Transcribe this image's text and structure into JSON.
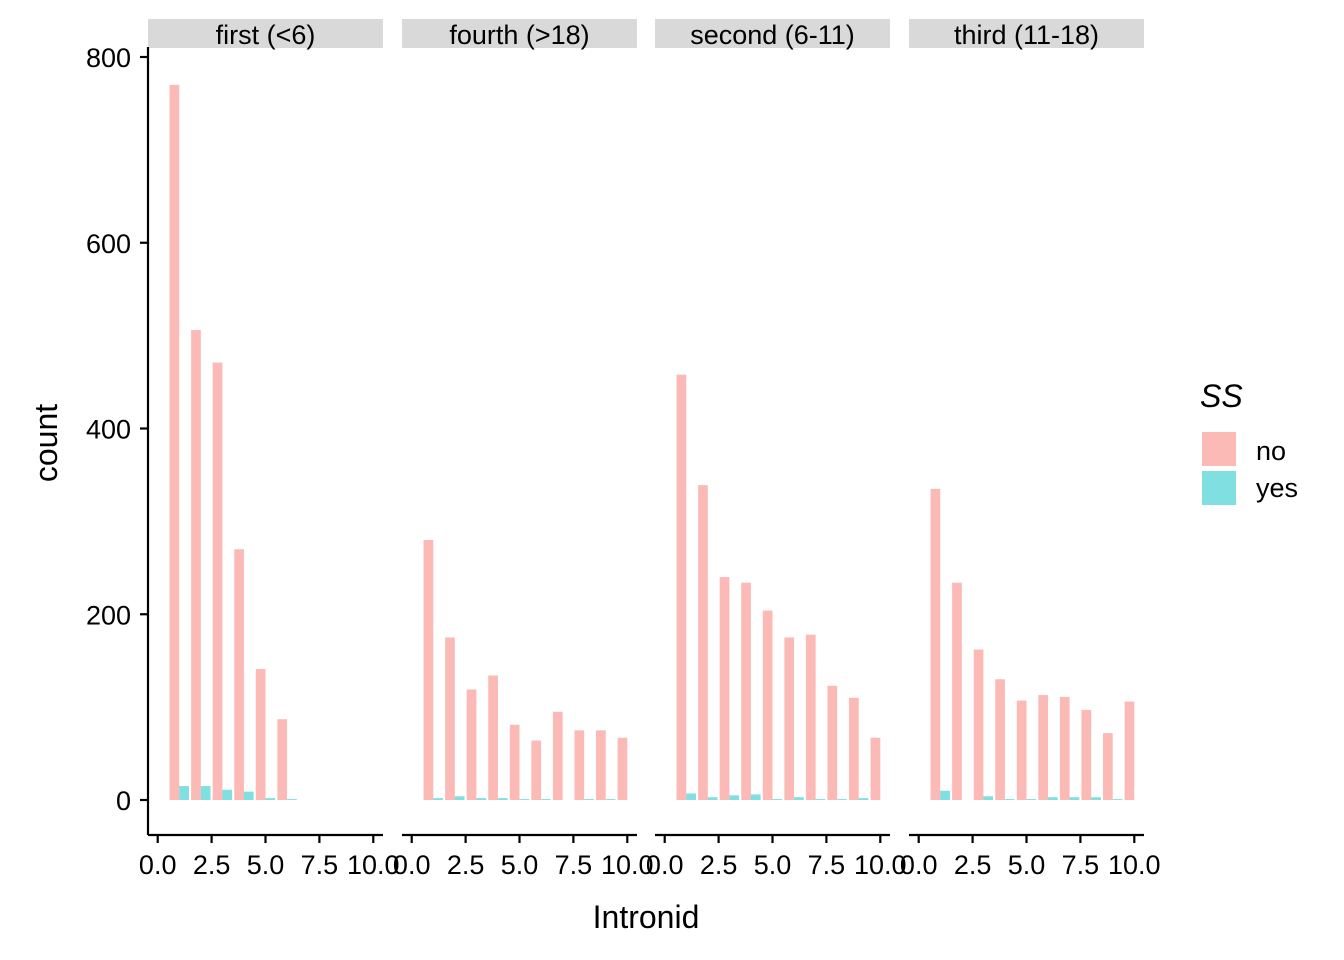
{
  "chart_data": {
    "type": "bar",
    "xlabel": "Intronid",
    "ylabel": "count",
    "ylim": [
      0,
      800
    ],
    "y_ticks": [
      0,
      200,
      400,
      600,
      800
    ],
    "x_ticks": [
      0,
      2.5,
      5,
      7.5,
      10
    ],
    "x_tick_labels": [
      "0.0",
      "2.5",
      "5.0",
      "7.5",
      "10.0"
    ],
    "xlim": [
      -0.45,
      10.45
    ],
    "grid": false,
    "legend": {
      "title": "SS",
      "placement": "right",
      "entries": [
        {
          "label": "no",
          "color": "#F8766D"
        },
        {
          "label": "yes",
          "color": "#00BFC4"
        }
      ]
    },
    "bar_opacity": 0.5,
    "panels": [
      {
        "label": "first (<6)",
        "series": [
          {
            "name": "no",
            "x": [
              1,
              2,
              3,
              4,
              5,
              6
            ],
            "values": [
              770,
              506,
              471,
              270,
              141,
              87
            ]
          },
          {
            "name": "yes",
            "x": [
              1,
              2,
              3,
              4,
              5,
              6
            ],
            "values": [
              15,
              15,
              11,
              9,
              2,
              1
            ]
          }
        ]
      },
      {
        "label": "fourth (>18)",
        "series": [
          {
            "name": "no",
            "x": [
              1,
              2,
              3,
              4,
              5,
              6,
              7,
              8,
              9,
              10
            ],
            "values": [
              280,
              175,
              119,
              134,
              81,
              64,
              95,
              75,
              75,
              67
            ]
          },
          {
            "name": "yes",
            "x": [
              1,
              2,
              3,
              4,
              5,
              6,
              7,
              8,
              9,
              10
            ],
            "values": [
              2,
              4,
              2,
              2,
              1,
              1,
              0,
              1,
              1,
              0
            ]
          }
        ]
      },
      {
        "label": "second (6-11)",
        "series": [
          {
            "name": "no",
            "x": [
              1,
              2,
              3,
              4,
              5,
              6,
              7,
              8,
              9,
              10
            ],
            "values": [
              458,
              339,
              240,
              234,
              204,
              175,
              178,
              123,
              110,
              67
            ]
          },
          {
            "name": "yes",
            "x": [
              1,
              2,
              3,
              4,
              5,
              6,
              7,
              8,
              9,
              10
            ],
            "values": [
              7,
              3,
              5,
              6,
              1,
              3,
              1,
              1,
              2,
              0
            ]
          }
        ]
      },
      {
        "label": "third (11-18)",
        "series": [
          {
            "name": "no",
            "x": [
              1,
              2,
              3,
              4,
              5,
              6,
              7,
              8,
              9,
              10
            ],
            "values": [
              335,
              234,
              162,
              130,
              107,
              113,
              111,
              97,
              72,
              106
            ]
          },
          {
            "name": "yes",
            "x": [
              1,
              2,
              3,
              4,
              5,
              6,
              7,
              8,
              9,
              10
            ],
            "values": [
              10,
              0,
              4,
              1,
              1,
              3,
              3,
              3,
              1,
              0
            ]
          }
        ]
      }
    ]
  }
}
